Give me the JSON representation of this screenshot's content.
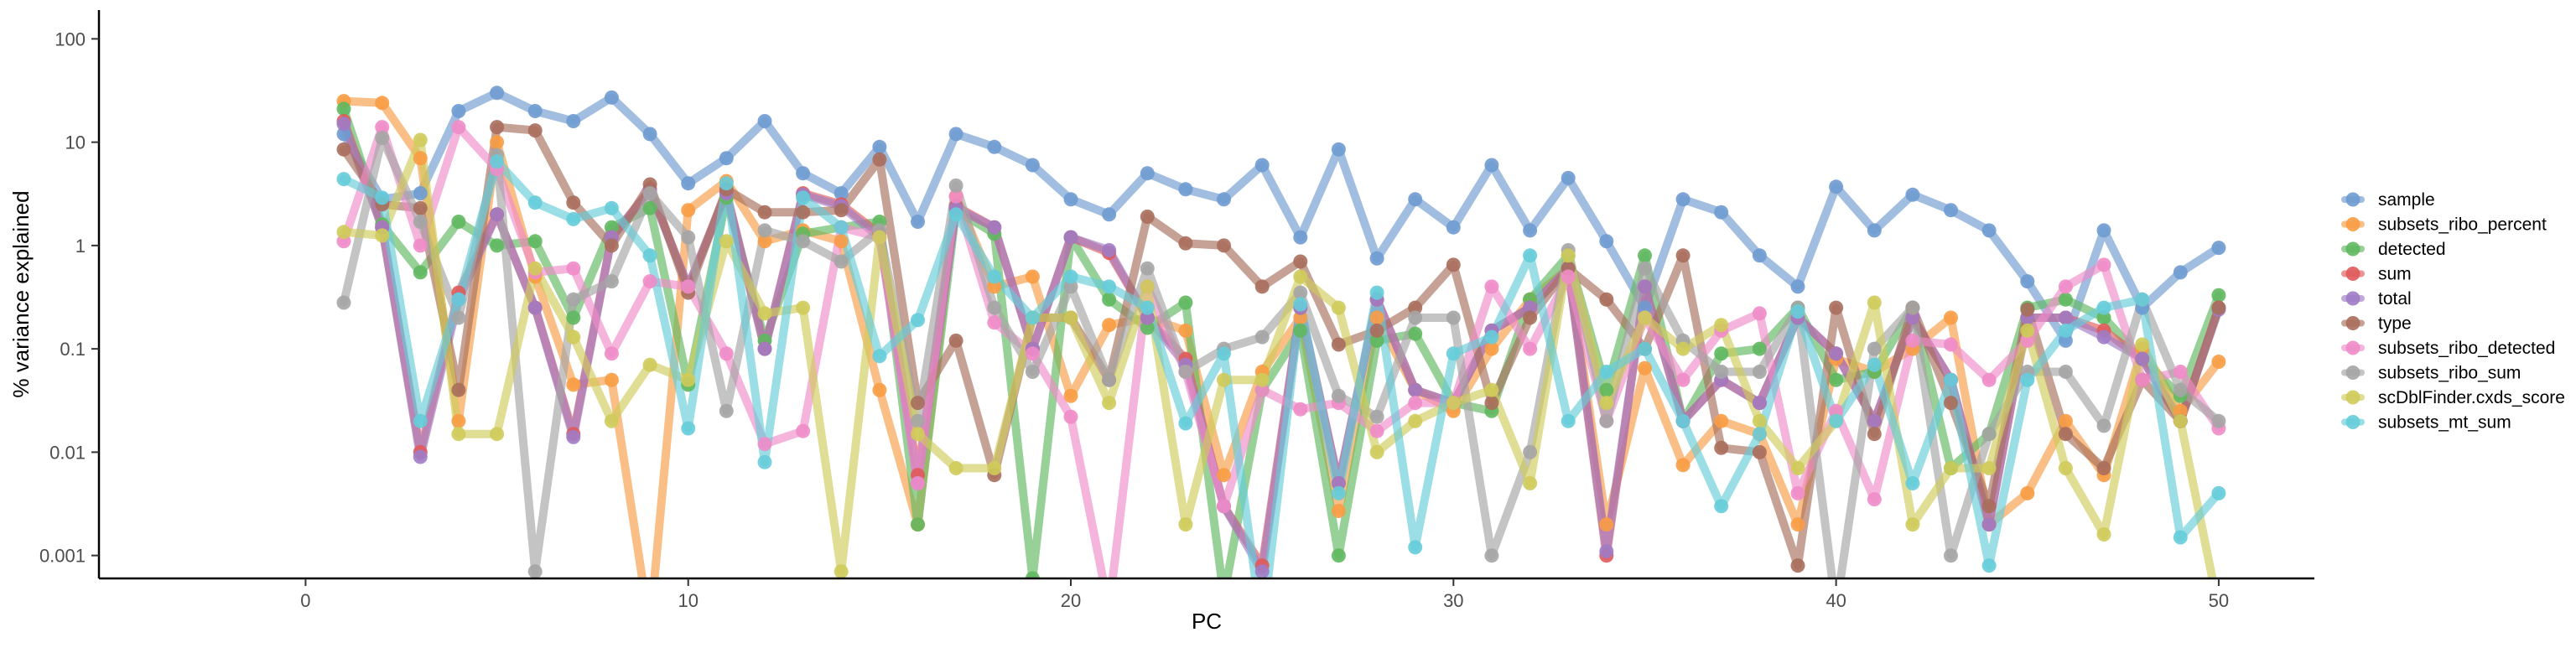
{
  "chart_data": {
    "type": "line",
    "xlabel": "PC",
    "ylabel": "% variance explained",
    "y_scale": "log10",
    "xlim": [
      -5.4,
      52.5
    ],
    "ylim": [
      0.0006,
      190
    ],
    "x_ticks": [
      0,
      10,
      20,
      30,
      40,
      50
    ],
    "x_tick_labels": [
      "0",
      "10",
      "20",
      "30",
      "40",
      "50"
    ],
    "y_ticks": [
      0.001,
      0.01,
      0.1,
      1,
      10,
      100
    ],
    "y_tick_labels": [
      "0.001",
      "0.01",
      "0.1",
      "1",
      "10",
      "100"
    ],
    "grid": false,
    "legend_position": "right",
    "line_opacity": 0.65,
    "x": [
      1,
      2,
      3,
      4,
      5,
      6,
      7,
      8,
      9,
      10,
      11,
      12,
      13,
      14,
      15,
      16,
      17,
      18,
      19,
      20,
      21,
      22,
      23,
      24,
      25,
      26,
      27,
      28,
      29,
      30,
      31,
      32,
      33,
      34,
      35,
      36,
      37,
      38,
      39,
      40,
      41,
      42,
      43,
      44,
      45,
      46,
      47,
      48,
      49,
      50
    ],
    "series": [
      {
        "name": "sample",
        "color": "#6e9bd1",
        "values": [
          12,
          2.8,
          3.2,
          20,
          30,
          20,
          16,
          27,
          12,
          4,
          7,
          16,
          5,
          3.2,
          9,
          1.7,
          12,
          9,
          6,
          2.8,
          2,
          5,
          3.5,
          2.8,
          6,
          1.2,
          8.5,
          0.75,
          2.8,
          1.5,
          6,
          1.4,
          4.5,
          1.1,
          0.25,
          2.8,
          2.1,
          0.8,
          0.4,
          3.7,
          1.4,
          3.1,
          2.2,
          1.4,
          0.45,
          0.12,
          1.4,
          0.25,
          0.55,
          0.95
        ]
      },
      {
        "name": "subsets_ribo_percent",
        "color": "#f89c45",
        "values": [
          25,
          24,
          7,
          0.02,
          10,
          0.5,
          0.045,
          0.05,
          0.0002,
          2.2,
          4.2,
          1.1,
          1.4,
          1.1,
          0.04,
          0.002,
          3,
          0.4,
          0.5,
          0.035,
          0.17,
          0.2,
          0.15,
          0.006,
          0.06,
          0.2,
          0.0027,
          0.2,
          0.04,
          0.025,
          0.1,
          0.3,
          0.6,
          0.002,
          0.065,
          0.0075,
          0.02,
          0.015,
          0.002,
          0.08,
          0.06,
          0.1,
          0.2,
          0.002,
          0.004,
          0.02,
          0.006,
          0.1,
          0.025,
          0.075
        ]
      },
      {
        "name": "detected",
        "color": "#5fb85f",
        "values": [
          21,
          1.6,
          0.55,
          1.7,
          1,
          1.1,
          0.2,
          1.5,
          2.3,
          0.045,
          2.9,
          0.12,
          1.3,
          1.5,
          1.7,
          0.002,
          2.2,
          1.3,
          0.0006,
          1.2,
          0.3,
          0.16,
          0.28,
          0.0004,
          0.04,
          0.15,
          0.001,
          0.12,
          0.14,
          0.03,
          0.025,
          0.3,
          0.8,
          0.04,
          0.8,
          0.02,
          0.09,
          0.1,
          0.25,
          0.05,
          0.06,
          0.25,
          0.007,
          0.015,
          0.25,
          0.3,
          0.2,
          0.08,
          0.035,
          0.33
        ]
      },
      {
        "name": "sum",
        "color": "#e05a5a",
        "values": [
          16,
          1.5,
          0.01,
          0.35,
          2,
          0.25,
          0.015,
          1.2,
          3.5,
          0.4,
          3.3,
          0.1,
          3.2,
          2.5,
          1.3,
          0.006,
          2.4,
          1.5,
          0.1,
          1.2,
          0.85,
          0.2,
          0.08,
          0.003,
          0.0008,
          0.25,
          0.005,
          0.3,
          0.04,
          0.03,
          0.15,
          0.25,
          0.6,
          0.001,
          0.4,
          0.02,
          0.05,
          0.03,
          0.2,
          0.09,
          0.02,
          0.2,
          0.05,
          0.002,
          0.2,
          0.2,
          0.15,
          0.08,
          0.02,
          0.25
        ]
      },
      {
        "name": "total",
        "color": "#a07cc5",
        "values": [
          15,
          1.5,
          0.009,
          0.3,
          2,
          0.25,
          0.014,
          1.2,
          3.4,
          0.4,
          3.2,
          0.1,
          3.1,
          2.4,
          1.2,
          0.005,
          2.3,
          1.5,
          0.1,
          1.2,
          0.9,
          0.2,
          0.07,
          0.003,
          0.0007,
          0.25,
          0.005,
          0.3,
          0.04,
          0.03,
          0.15,
          0.25,
          0.6,
          0.0011,
          0.4,
          0.02,
          0.05,
          0.03,
          0.2,
          0.09,
          0.02,
          0.2,
          0.05,
          0.002,
          0.2,
          0.2,
          0.13,
          0.08,
          0.02,
          0.24
        ]
      },
      {
        "name": "type",
        "color": "#a86e5c",
        "values": [
          8.5,
          2.5,
          2.3,
          0.04,
          14,
          13,
          2.6,
          1,
          3.9,
          0.35,
          3.5,
          2.1,
          2.1,
          2.2,
          6.8,
          0.03,
          0.12,
          0.006,
          0.2,
          0.2,
          0.05,
          1.9,
          1.05,
          1,
          0.4,
          0.7,
          0.11,
          0.15,
          0.25,
          0.65,
          0.03,
          0.2,
          0.6,
          0.3,
          0.1,
          0.8,
          0.011,
          0.01,
          0.0008,
          0.25,
          0.015,
          0.25,
          0.03,
          0.003,
          0.24,
          0.015,
          0.007,
          0.05,
          0.02,
          0.25
        ]
      },
      {
        "name": "subsets_ribo_detected",
        "color": "#f08cc8",
        "values": [
          1.1,
          14,
          1,
          14,
          5.5,
          0.55,
          0.6,
          0.09,
          0.45,
          0.4,
          0.09,
          0.012,
          0.016,
          1.5,
          1.2,
          0.005,
          3,
          0.18,
          0.09,
          0.022,
          0.0003,
          0.4,
          0.06,
          0.003,
          0.04,
          0.026,
          0.03,
          0.016,
          0.03,
          0.03,
          0.4,
          0.1,
          0.5,
          0.02,
          0.2,
          0.05,
          0.15,
          0.22,
          0.004,
          0.025,
          0.0035,
          0.12,
          0.11,
          0.05,
          0.12,
          0.4,
          0.65,
          0.05,
          0.06,
          0.017
        ]
      },
      {
        "name": "subsets_ribo_sum",
        "color": "#a5a5a5",
        "values": [
          0.28,
          11,
          1.7,
          0.2,
          7.5,
          0.0007,
          0.3,
          0.45,
          3.2,
          1.2,
          0.025,
          1.4,
          1.1,
          0.7,
          1.4,
          0.02,
          3.8,
          0.25,
          0.06,
          0.4,
          0.05,
          0.6,
          0.06,
          0.1,
          0.13,
          0.35,
          0.035,
          0.022,
          0.2,
          0.2,
          0.001,
          0.01,
          0.9,
          0.02,
          0.6,
          0.12,
          0.06,
          0.06,
          0.25,
          0.0003,
          0.1,
          0.25,
          0.001,
          0.015,
          0.06,
          0.06,
          0.018,
          0.3,
          0.04,
          0.02
        ]
      },
      {
        "name": "scDblFinder.cxds_score",
        "color": "#cfcb5a",
        "values": [
          1.35,
          1.25,
          10.5,
          0.015,
          0.015,
          0.6,
          0.13,
          0.02,
          0.07,
          0.05,
          1.1,
          0.22,
          0.25,
          0.0007,
          1.2,
          0.015,
          0.007,
          0.007,
          0.2,
          0.2,
          0.03,
          0.4,
          0.002,
          0.05,
          0.05,
          0.5,
          0.25,
          0.01,
          0.02,
          0.03,
          0.04,
          0.005,
          0.8,
          0.03,
          0.2,
          0.1,
          0.17,
          0.02,
          0.007,
          0.02,
          0.28,
          0.002,
          0.007,
          0.007,
          0.15,
          0.007,
          0.0016,
          0.11,
          0.02,
          0.0003
        ]
      },
      {
        "name": "subsets_mt_sum",
        "color": "#66ccd9",
        "values": [
          4.4,
          2.9,
          0.02,
          0.3,
          6.5,
          2.6,
          1.8,
          2.3,
          0.8,
          0.017,
          4,
          0.008,
          2.9,
          1.5,
          0.085,
          0.19,
          2,
          0.5,
          0.2,
          0.5,
          0.4,
          0.25,
          0.019,
          0.09,
          0.0002,
          0.27,
          0.004,
          0.35,
          0.0012,
          0.09,
          0.13,
          0.8,
          0.02,
          0.06,
          0.1,
          0.02,
          0.003,
          0.015,
          0.23,
          0.02,
          0.07,
          0.005,
          0.05,
          0.0008,
          0.05,
          0.15,
          0.25,
          0.3,
          0.0015,
          0.004
        ]
      }
    ]
  }
}
